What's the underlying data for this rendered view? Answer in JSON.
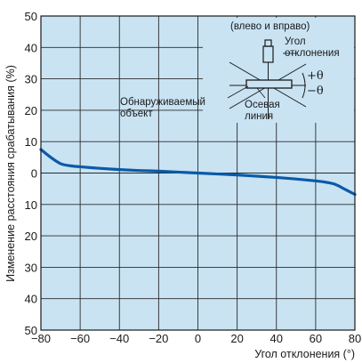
{
  "chart_data": {
    "type": "line",
    "title": "",
    "xlabel": "Угол отклонения (°)",
    "ylabel": "Изменение расстояния срабатывания (%)",
    "xlim": [
      -80,
      80
    ],
    "ylim": [
      -50,
      50
    ],
    "x_ticks": [
      -80,
      -60,
      -40,
      -20,
      0,
      20,
      40,
      60,
      80
    ],
    "y_ticks": [
      50,
      40,
      30,
      20,
      10,
      0,
      -10,
      -20,
      -30,
      -40,
      -50
    ],
    "x_tick_labels": [
      "−80",
      "−60",
      "−40",
      "−20",
      "0",
      "20",
      "40",
      "60",
      "80"
    ],
    "y_tick_labels": [
      "50",
      "40",
      "30",
      "20",
      "10",
      "0",
      "10",
      "20",
      "30",
      "40",
      "50"
    ],
    "grid": true,
    "series": [
      {
        "name": "",
        "color": "#0a5aa8",
        "x": [
          -80,
          -75,
          -70,
          -65,
          -60,
          -50,
          -40,
          -30,
          -20,
          -10,
          0,
          10,
          20,
          30,
          40,
          50,
          60,
          65,
          70,
          75,
          80
        ],
        "y": [
          7.5,
          5.0,
          3.0,
          2.3,
          2.0,
          1.5,
          1.1,
          0.8,
          0.6,
          0.3,
          0.0,
          -0.3,
          -0.6,
          -1.0,
          -1.4,
          -1.9,
          -2.5,
          -2.9,
          -3.6,
          -5.2,
          -6.8
        ]
      }
    ],
    "inset": {
      "direction_note": "(влево и вправо)",
      "deflection_angle_label_line1": "Угол",
      "deflection_angle_label_line2": "отклонения",
      "plus_theta": "+θ",
      "minus_theta": "−θ",
      "target_label_line1": "Обнаруживаемый",
      "target_label_line2": "объект",
      "axis_label_line1": "Осевая",
      "axis_label_line2": "линия"
    }
  },
  "colors": {
    "plot_bg": "#c9e3f3",
    "grid": "#2b2b2b",
    "line": "#0a5aa8"
  }
}
